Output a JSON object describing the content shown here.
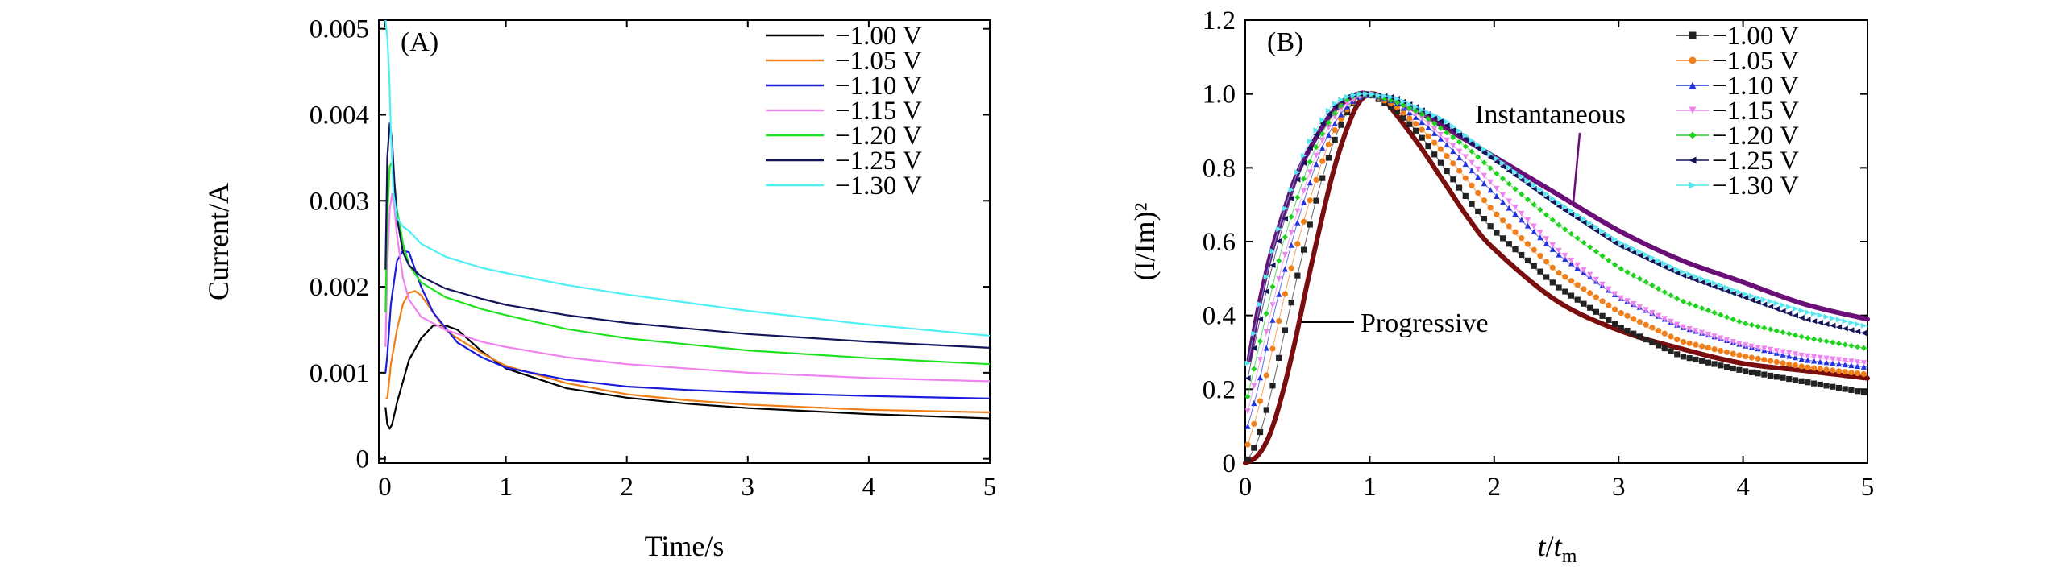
{
  "chart_data": [
    {
      "panel": "(A)",
      "type": "line",
      "xlabel": "Time/s",
      "ylabel": "Current/A",
      "xlim": [
        -0.05,
        5
      ],
      "ylim": [
        -5e-05,
        0.0051
      ],
      "xticks": [
        "0",
        "1",
        "2",
        "3",
        "4",
        "5"
      ],
      "yticks": [
        "0",
        "0.001",
        "0.002",
        "0.003",
        "0.004",
        "0.005"
      ],
      "legend_position": "top-right",
      "series": [
        {
          "name": "−1.00 V",
          "color": "#000000",
          "x": [
            0.005,
            0.02,
            0.04,
            0.06,
            0.1,
            0.15,
            0.2,
            0.3,
            0.4,
            0.5,
            0.6,
            0.8,
            1.0,
            1.5,
            2.0,
            2.5,
            3.0,
            4.0,
            5.0
          ],
          "y": [
            0.0006,
            0.0004,
            0.00035,
            0.0004,
            0.00065,
            0.0009,
            0.00115,
            0.0014,
            0.00155,
            0.00155,
            0.0015,
            0.00125,
            0.00105,
            0.00082,
            0.00071,
            0.00064,
            0.00059,
            0.00052,
            0.00047
          ]
        },
        {
          "name": "−1.05 V",
          "color": "#f07f1a",
          "x": [
            0.005,
            0.02,
            0.05,
            0.1,
            0.15,
            0.2,
            0.25,
            0.3,
            0.4,
            0.5,
            0.6,
            0.8,
            1.0,
            1.5,
            2.0,
            2.5,
            3.0,
            4.0,
            5.0
          ],
          "y": [
            0.0007,
            0.0007,
            0.0011,
            0.0015,
            0.0018,
            0.00193,
            0.00195,
            0.0019,
            0.0017,
            0.0015,
            0.0014,
            0.00123,
            0.00108,
            0.00088,
            0.00075,
            0.00068,
            0.00063,
            0.00057,
            0.00054
          ]
        },
        {
          "name": "−1.10 V",
          "color": "#1c1cdc",
          "x": [
            0.005,
            0.02,
            0.05,
            0.1,
            0.15,
            0.2,
            0.25,
            0.3,
            0.4,
            0.6,
            0.8,
            1.0,
            1.5,
            2.0,
            2.5,
            3.0,
            4.0,
            5.0
          ],
          "y": [
            0.001,
            0.0012,
            0.0018,
            0.0023,
            0.00242,
            0.0024,
            0.0022,
            0.002,
            0.0017,
            0.00135,
            0.00118,
            0.00106,
            0.00092,
            0.00084,
            0.0008,
            0.00077,
            0.00073,
            0.0007
          ]
        },
        {
          "name": "−1.15 V",
          "color": "#ee82ee",
          "x": [
            0.005,
            0.02,
            0.04,
            0.06,
            0.08,
            0.1,
            0.15,
            0.2,
            0.3,
            0.5,
            0.8,
            1.0,
            1.5,
            2.0,
            3.0,
            4.0,
            5.0
          ],
          "y": [
            0.0013,
            0.0022,
            0.0029,
            0.00308,
            0.0029,
            0.0026,
            0.0021,
            0.00185,
            0.00165,
            0.0015,
            0.00136,
            0.0013,
            0.00118,
            0.0011,
            0.001,
            0.00094,
            0.0009
          ]
        },
        {
          "name": "−1.20 V",
          "color": "#1ee11e",
          "x": [
            0.005,
            0.02,
            0.04,
            0.06,
            0.08,
            0.1,
            0.15,
            0.2,
            0.3,
            0.5,
            0.8,
            1.0,
            1.5,
            2.0,
            3.0,
            4.0,
            5.0
          ],
          "y": [
            0.0017,
            0.0028,
            0.0034,
            0.00345,
            0.0032,
            0.0029,
            0.0025,
            0.00225,
            0.00205,
            0.00188,
            0.00174,
            0.00167,
            0.00151,
            0.0014,
            0.00126,
            0.00117,
            0.0011
          ]
        },
        {
          "name": "−1.25 V",
          "color": "#14145a",
          "x": [
            0.005,
            0.02,
            0.04,
            0.06,
            0.08,
            0.1,
            0.15,
            0.2,
            0.3,
            0.5,
            0.8,
            1.0,
            1.5,
            2.0,
            3.0,
            4.0,
            5.0
          ],
          "y": [
            0.0022,
            0.0035,
            0.0039,
            0.0037,
            0.0032,
            0.0028,
            0.0024,
            0.00225,
            0.00212,
            0.00198,
            0.00186,
            0.00179,
            0.00167,
            0.00158,
            0.00145,
            0.00136,
            0.00129
          ]
        },
        {
          "name": "−1.30 V",
          "color": "#4ff0f5",
          "x": [
            0.005,
            0.02,
            0.035,
            0.05,
            0.07,
            0.1,
            0.15,
            0.2,
            0.3,
            0.5,
            0.8,
            1.0,
            1.5,
            2.0,
            3.0,
            4.0,
            5.0
          ],
          "y": [
            0.0051,
            0.0049,
            0.0045,
            0.0038,
            0.0031,
            0.0028,
            0.0027,
            0.00265,
            0.0025,
            0.00235,
            0.00222,
            0.00216,
            0.00202,
            0.00191,
            0.00172,
            0.00156,
            0.00143
          ]
        }
      ]
    },
    {
      "panel": "(B)",
      "type": "scatter",
      "xlabel_italic": "t",
      "xlabel_sep": "/",
      "xlabel_sub_base": "t",
      "xlabel_sub": "m",
      "ylabel_text": "(I/Im)²",
      "xlim": [
        0,
        5
      ],
      "ylim": [
        0,
        1.2
      ],
      "xticks": [
        "0",
        "1",
        "2",
        "3",
        "4",
        "5"
      ],
      "yticks": [
        "0",
        "0.2",
        "0.4",
        "0.6",
        "0.8",
        "1.0",
        "1.2"
      ],
      "legend_position": "top-right",
      "annotations": [
        "Instantaneous",
        "Progressive"
      ],
      "models": [
        {
          "name": "Instantaneous",
          "color": "#6b0f78",
          "x": [
            0.03,
            0.1,
            0.2,
            0.3,
            0.4,
            0.5,
            0.6,
            0.7,
            0.8,
            0.9,
            1.0,
            1.2,
            1.4,
            1.6,
            1.8,
            2.0,
            2.5,
            3.0,
            3.5,
            4.0,
            4.5,
            5.0
          ],
          "y": [
            0.28,
            0.41,
            0.56,
            0.67,
            0.77,
            0.84,
            0.9,
            0.95,
            0.98,
            1.0,
            1.0,
            0.98,
            0.95,
            0.91,
            0.87,
            0.83,
            0.73,
            0.63,
            0.55,
            0.49,
            0.43,
            0.39
          ]
        },
        {
          "name": "Progressive",
          "color": "#7a0d0d",
          "x": [
            0.0,
            0.1,
            0.2,
            0.3,
            0.4,
            0.5,
            0.6,
            0.7,
            0.8,
            0.9,
            1.0,
            1.1,
            1.2,
            1.4,
            1.6,
            1.8,
            2.0,
            2.5,
            3.0,
            3.5,
            4.0,
            4.5,
            5.0
          ],
          "y": [
            0.0,
            0.02,
            0.08,
            0.19,
            0.33,
            0.49,
            0.64,
            0.78,
            0.89,
            0.97,
            1.0,
            0.99,
            0.95,
            0.86,
            0.76,
            0.66,
            0.58,
            0.44,
            0.36,
            0.31,
            0.27,
            0.25,
            0.23
          ]
        }
      ],
      "series": [
        {
          "name": "−1.00 V",
          "color": "#222222",
          "marker": "square",
          "x": [
            0.02,
            0.1,
            0.2,
            0.3,
            0.4,
            0.5,
            0.6,
            0.7,
            0.8,
            0.9,
            1.0,
            1.2,
            1.4,
            1.6,
            1.8,
            2.0,
            2.5,
            3.0,
            3.5,
            4.0,
            4.5,
            5.0
          ],
          "y": [
            0.01,
            0.06,
            0.18,
            0.33,
            0.48,
            0.62,
            0.75,
            0.86,
            0.94,
            0.99,
            1.0,
            0.96,
            0.89,
            0.8,
            0.71,
            0.63,
            0.48,
            0.37,
            0.29,
            0.25,
            0.22,
            0.19
          ]
        },
        {
          "name": "−1.05 V",
          "color": "#f07f1a",
          "marker": "circle",
          "x": [
            0.02,
            0.1,
            0.2,
            0.3,
            0.4,
            0.5,
            0.6,
            0.7,
            0.8,
            0.9,
            1.0,
            1.2,
            1.4,
            1.6,
            1.8,
            2.0,
            2.5,
            3.0,
            3.5,
            4.0,
            4.5,
            5.0
          ],
          "y": [
            0.05,
            0.14,
            0.28,
            0.43,
            0.57,
            0.69,
            0.8,
            0.89,
            0.95,
            0.99,
            1.0,
            0.97,
            0.91,
            0.84,
            0.76,
            0.68,
            0.52,
            0.41,
            0.33,
            0.29,
            0.26,
            0.24
          ]
        },
        {
          "name": "−1.10 V",
          "color": "#2233dd",
          "marker": "triangle-up",
          "x": [
            0.02,
            0.1,
            0.2,
            0.3,
            0.4,
            0.5,
            0.6,
            0.7,
            0.8,
            0.9,
            1.0,
            1.2,
            1.4,
            1.6,
            1.8,
            2.0,
            2.5,
            3.0,
            3.5,
            4.0,
            4.5,
            5.0
          ],
          "y": [
            0.1,
            0.2,
            0.36,
            0.5,
            0.63,
            0.74,
            0.84,
            0.91,
            0.96,
            0.99,
            1.0,
            0.98,
            0.93,
            0.87,
            0.8,
            0.73,
            0.57,
            0.45,
            0.37,
            0.32,
            0.28,
            0.26
          ]
        },
        {
          "name": "−1.15 V",
          "color": "#ee82ee",
          "marker": "triangle-down",
          "x": [
            0.02,
            0.1,
            0.2,
            0.3,
            0.4,
            0.5,
            0.6,
            0.7,
            0.8,
            0.9,
            1.0,
            1.2,
            1.4,
            1.6,
            1.8,
            2.0,
            2.5,
            3.0,
            3.5,
            4.0,
            4.5,
            5.0
          ],
          "y": [
            0.14,
            0.25,
            0.4,
            0.54,
            0.66,
            0.77,
            0.86,
            0.93,
            0.97,
            0.99,
            1.0,
            0.98,
            0.94,
            0.88,
            0.82,
            0.75,
            0.58,
            0.45,
            0.37,
            0.32,
            0.29,
            0.27
          ]
        },
        {
          "name": "−1.20 V",
          "color": "#1ed21e",
          "marker": "diamond",
          "x": [
            0.02,
            0.1,
            0.2,
            0.3,
            0.4,
            0.5,
            0.6,
            0.7,
            0.8,
            0.9,
            1.0,
            1.2,
            1.4,
            1.6,
            1.8,
            2.0,
            2.5,
            3.0,
            3.5,
            4.0,
            4.5,
            5.0
          ],
          "y": [
            0.18,
            0.3,
            0.45,
            0.59,
            0.7,
            0.8,
            0.88,
            0.94,
            0.98,
            1.0,
            1.0,
            0.98,
            0.95,
            0.9,
            0.85,
            0.79,
            0.65,
            0.53,
            0.44,
            0.38,
            0.34,
            0.31
          ]
        },
        {
          "name": "−1.25 V",
          "color": "#14145a",
          "marker": "triangle-left",
          "x": [
            0.02,
            0.1,
            0.2,
            0.3,
            0.4,
            0.5,
            0.6,
            0.7,
            0.8,
            0.9,
            1.0,
            1.2,
            1.4,
            1.6,
            1.8,
            2.0,
            2.5,
            3.0,
            3.5,
            4.0,
            4.5,
            5.0
          ],
          "y": [
            0.23,
            0.36,
            0.51,
            0.64,
            0.75,
            0.84,
            0.91,
            0.96,
            0.99,
            1.0,
            1.0,
            0.99,
            0.96,
            0.92,
            0.87,
            0.82,
            0.7,
            0.59,
            0.51,
            0.45,
            0.39,
            0.35
          ]
        },
        {
          "name": "−1.30 V",
          "color": "#55e8f0",
          "marker": "triangle-right",
          "x": [
            0.02,
            0.1,
            0.2,
            0.3,
            0.4,
            0.5,
            0.6,
            0.7,
            0.8,
            0.9,
            1.0,
            1.2,
            1.4,
            1.6,
            1.8,
            2.0,
            2.5,
            3.0,
            3.5,
            4.0,
            4.5,
            5.0
          ],
          "y": [
            0.27,
            0.4,
            0.55,
            0.67,
            0.77,
            0.86,
            0.92,
            0.97,
            0.99,
            1.0,
            1.0,
            0.99,
            0.96,
            0.93,
            0.88,
            0.83,
            0.71,
            0.6,
            0.52,
            0.46,
            0.41,
            0.37
          ]
        }
      ]
    }
  ]
}
